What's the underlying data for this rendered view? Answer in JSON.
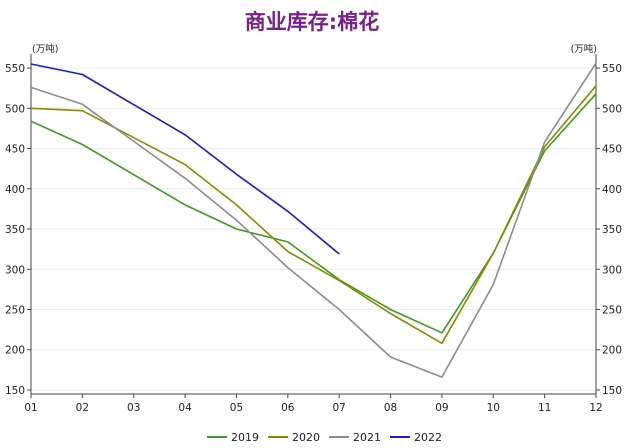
{
  "chart_data": {
    "type": "line",
    "title": "商业库存:棉花",
    "y_unit_left": "(万吨)",
    "y_unit_right": "(万吨)",
    "categories": [
      "01",
      "02",
      "03",
      "04",
      "05",
      "06",
      "07",
      "08",
      "09",
      "10",
      "11",
      "12"
    ],
    "ylim": [
      145,
      560
    ],
    "yticks": [
      150,
      200,
      250,
      300,
      350,
      400,
      450,
      500,
      550
    ],
    "grid": true,
    "legend_position": "bottom",
    "series": [
      {
        "name": "2019",
        "color": "#3c9e1e",
        "values": [
          484,
          455,
          null,
          380,
          350,
          334,
          287,
          250,
          221,
          320,
          447,
          518
        ]
      },
      {
        "name": "2020",
        "color": "#8a8a00",
        "values": [
          500,
          497,
          null,
          430,
          380,
          322,
          286,
          245,
          208,
          320,
          452,
          528
        ]
      },
      {
        "name": "2021",
        "color": "#8c8c8c",
        "values": [
          526,
          505,
          null,
          413,
          361,
          302,
          250,
          191,
          166,
          281,
          458,
          556
        ]
      },
      {
        "name": "2022",
        "color": "#1a1ad4",
        "values": [
          555,
          542,
          null,
          467,
          418,
          372,
          319,
          null,
          null,
          null,
          null,
          null
        ]
      }
    ]
  }
}
